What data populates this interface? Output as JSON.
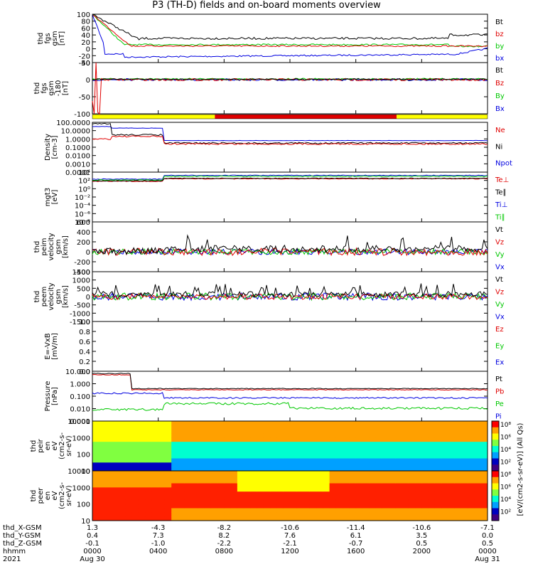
{
  "title": "P3 (TH-D) fields and on-board moments overview",
  "chart_data": {
    "type": "line",
    "x_axis": {
      "rows": [
        {
          "label": "thd_X-GSM",
          "values": [
            "1.3",
            "-4.3",
            "-8.2",
            "-10.6",
            "-11.4",
            "-10.6",
            "-7.1"
          ]
        },
        {
          "label": "thd_Y-GSM",
          "values": [
            "0.4",
            "7.3",
            "8.2",
            "7.6",
            "6.1",
            "3.5",
            "0.0"
          ]
        },
        {
          "label": "thd_Z-GSM",
          "values": [
            "-0.1",
            "-1.0",
            "-2.2",
            "-2.1",
            "-0.7",
            "0.5",
            "0.5"
          ]
        },
        {
          "label": "hhmm",
          "values": [
            "0000",
            "0400",
            "0800",
            "1200",
            "1600",
            "2000",
            "0000"
          ]
        },
        {
          "label": "2021",
          "values": [
            "Aug 30",
            "",
            "",
            "",
            "",
            "",
            "Aug 31"
          ]
        }
      ]
    },
    "panels": [
      {
        "id": "fgs-gsm",
        "ylabel": [
          "thd",
          "fgs",
          "gsm",
          "[nT]"
        ],
        "ticks": [
          "100",
          "80",
          "60",
          "40",
          "20",
          "0",
          "-20",
          "-40"
        ],
        "legend": [
          {
            "name": "Bt",
            "color": "#000000"
          },
          {
            "name": "bz",
            "color": "#e00000"
          },
          {
            "name": "by",
            "color": "#00c800"
          },
          {
            "name": "bx",
            "color": "#0000e0"
          }
        ]
      },
      {
        "id": "fgs-gsm-hf",
        "ylabel": [
          "thd",
          "fgs",
          "gsm",
          "-180",
          "[nT]"
        ],
        "ticks": [
          "50",
          "0",
          "-50",
          "-100"
        ],
        "legend": [
          {
            "name": "Bt",
            "color": "#000000"
          },
          {
            "name": "Bz",
            "color": "#e00000"
          },
          {
            "name": "By",
            "color": "#00c800"
          },
          {
            "name": "Bx",
            "color": "#0000e0"
          }
        ]
      },
      {
        "id": "density",
        "ylabel": [
          "Density",
          "[cm-3]"
        ],
        "ticks": [
          "100.0000",
          "10.0000",
          "1.0000",
          "0.1000",
          "0.0100",
          "0.0010",
          "0.0001"
        ],
        "legend": [
          {
            "name": "Ne",
            "color": "#e00000"
          },
          {
            "name": "Ni",
            "color": "#000000"
          },
          {
            "name": "Npot",
            "color": "#0000e0"
          }
        ]
      },
      {
        "id": "temperature",
        "ylabel": [
          "mgt3",
          "[eV]"
        ],
        "ticks": [
          "10⁴",
          "10²",
          "10⁰",
          "10⁻²",
          "10⁻⁴",
          "10⁻⁶",
          "10⁻⁸"
        ],
        "legend": [
          {
            "name": "Te⊥",
            "color": "#e00000"
          },
          {
            "name": "Te∥",
            "color": "#000000"
          },
          {
            "name": "Ti⊥",
            "color": "#0000e0"
          },
          {
            "name": "Ti∥",
            "color": "#00c800"
          }
        ]
      },
      {
        "id": "peim-velocity",
        "ylabel": [
          "thd",
          "peim",
          "velocity",
          "gsm",
          "[km/s]"
        ],
        "ticks": [
          "600",
          "400",
          "200",
          "0",
          "-200",
          "-400"
        ],
        "legend": [
          {
            "name": "Vt",
            "color": "#000000"
          },
          {
            "name": "Vz",
            "color": "#e00000"
          },
          {
            "name": "Vy",
            "color": "#00c800"
          },
          {
            "name": "Vx",
            "color": "#0000e0"
          }
        ]
      },
      {
        "id": "peem-velocity",
        "ylabel": [
          "thd",
          "peem",
          "velocity",
          "gsm",
          "[km/s]"
        ],
        "ticks": [
          "1500",
          "1000",
          "500",
          "0",
          "-500",
          "-1000",
          "-1500"
        ],
        "legend": [
          {
            "name": "Vt",
            "color": "#000000"
          },
          {
            "name": "Vz",
            "color": "#e00000"
          },
          {
            "name": "Vy",
            "color": "#00c800"
          },
          {
            "name": "Vx",
            "color": "#0000e0"
          }
        ]
      },
      {
        "id": "efield",
        "ylabel": [
          "E=-VxB",
          "[mV/m]"
        ],
        "ticks": [
          "1.0",
          "0.8",
          "0.6",
          "0.4",
          "0.2",
          "0.0"
        ],
        "legend": [
          {
            "name": "Ez",
            "color": "#e00000"
          },
          {
            "name": "Ey",
            "color": "#00c800"
          },
          {
            "name": "Ex",
            "color": "#0000e0"
          }
        ]
      },
      {
        "id": "pressure",
        "ylabel": [
          "Pressure",
          "[nPa]"
        ],
        "ticks": [
          "10.000",
          "1.000",
          "0.100",
          "0.010",
          "0.001"
        ],
        "legend": [
          {
            "name": "Pt",
            "color": "#000000"
          },
          {
            "name": "Pb",
            "color": "#e00000"
          },
          {
            "name": "Pe",
            "color": "#00c800"
          },
          {
            "name": "Pi",
            "color": "#0000e0"
          }
        ]
      },
      {
        "id": "peir-eflux",
        "ylabel": [
          "thd",
          "peir",
          "en",
          "eV",
          "(cm2-s-",
          "sr-eV)"
        ],
        "ticks": [
          "10000",
          "1000",
          "100",
          "10"
        ],
        "colorbar": {
          "labels": [
            "10⁸",
            "10⁶",
            "10⁴",
            "10²"
          ],
          "title": "[eV/(cm2-s-sr-eV)] (All Qs)"
        }
      },
      {
        "id": "peer-eflux",
        "ylabel": [
          "thd",
          "peer",
          "en",
          "eV",
          "(cm2-s-",
          "sr-eV)"
        ],
        "ticks": [
          "10000",
          "1000",
          "100",
          "10"
        ],
        "colorbar": {
          "labels": [
            "10⁸",
            "10⁶",
            "10⁴",
            "10²"
          ],
          "title": "[eV/(cm2-s-sr-eV)] (All Qs)"
        }
      }
    ],
    "mode_bar": {
      "segments": [
        {
          "from": 0,
          "to": 0.31,
          "color": "#ffff00"
        },
        {
          "from": 0.31,
          "to": 0.77,
          "color": "#e00000"
        },
        {
          "from": 0.77,
          "to": 1,
          "color": "#ffff00"
        }
      ]
    },
    "grid": false
  }
}
